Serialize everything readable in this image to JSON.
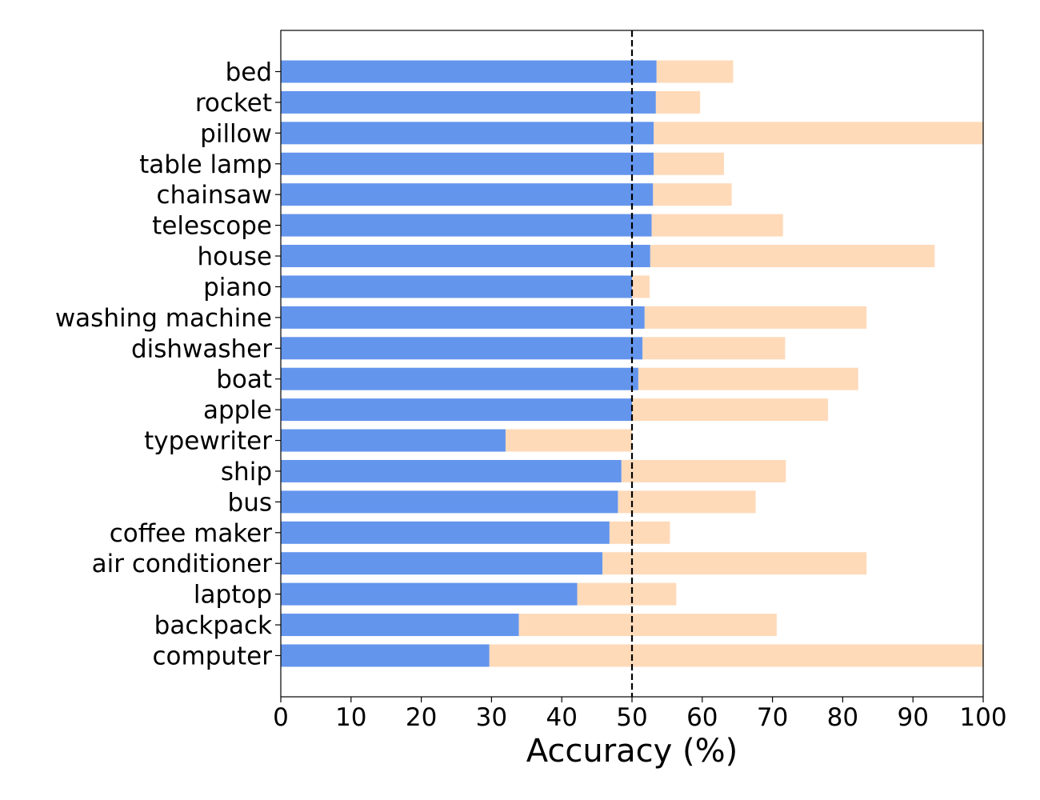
{
  "chart_data": {
    "type": "bar",
    "orientation": "horizontal",
    "title": "",
    "xlabel": "Accuracy (%)",
    "ylabel": "",
    "xlim": [
      0,
      100
    ],
    "x_ticks": [
      0,
      10,
      20,
      30,
      40,
      50,
      60,
      70,
      80,
      90,
      100
    ],
    "grid": false,
    "legend": "none",
    "reference_line": {
      "x": 50,
      "style": "dashed",
      "color": "#000000"
    },
    "colors": {
      "base": "#6495ED",
      "gain": "#FFDAB9",
      "loss": "#808080"
    },
    "categories": [
      "bed",
      "rocket",
      "pillow",
      "table lamp",
      "chainsaw",
      "telescope",
      "house",
      "piano",
      "washing machine",
      "dishwasher",
      "boat",
      "apple",
      "typewriter",
      "ship",
      "bus",
      "coffee maker",
      "air conditioner",
      "laptop",
      "backpack",
      "computer"
    ],
    "series": [
      {
        "values": [
          53.5,
          53.4,
          53.1,
          53.1,
          53.0,
          52.8,
          52.6,
          50.0,
          51.8,
          51.5,
          50.9,
          50.0,
          32.0,
          48.5,
          48.0,
          46.8,
          45.8,
          42.2,
          33.9,
          29.7
        ]
      },
      {
        "values": [
          64.4,
          59.7,
          100.0,
          63.1,
          64.2,
          71.5,
          93.1,
          52.5,
          83.4,
          71.8,
          82.2,
          77.9,
          50.0,
          71.9,
          67.6,
          55.4,
          83.4,
          56.3,
          70.6,
          100.0
        ]
      }
    ]
  }
}
